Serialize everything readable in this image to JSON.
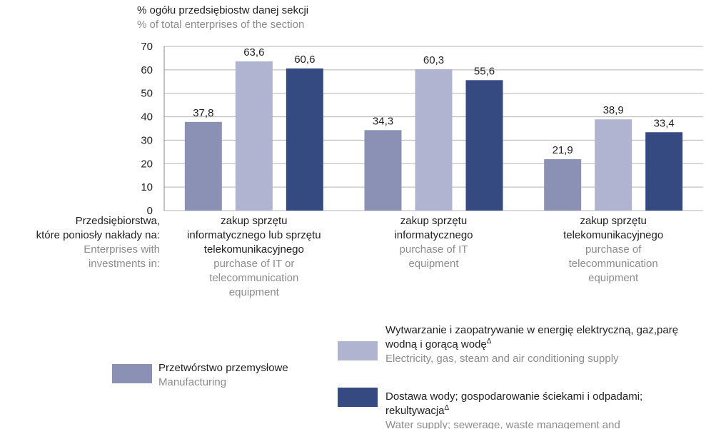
{
  "chart_data": {
    "type": "bar",
    "y_title": "% ogółu przedsiębiostw danej sekcji",
    "y_title_en": "% of total enterprises of the section",
    "row_label": [
      "Przedsiębiorstwa,",
      "które poniosły nakłady na:"
    ],
    "row_label_en": [
      "Enterprises with",
      "investments in:"
    ],
    "categories": [
      "zakup sprzętu informatycznego lub sprzętu telekomunikacyjnego",
      "zakup sprzętu informatycznego",
      "zakup sprzętu telekomunikacyjnego"
    ],
    "categories_en": [
      "purchase of IT or telecommunication equipment",
      "purchase of IT equipment",
      "purchase of telecommunication equipment"
    ],
    "series": [
      {
        "name": "Przetwórstwo przemysłowe",
        "name_en": "Manufacturing",
        "color": "#8a91b4",
        "values": [
          37.8,
          34.3,
          21.9
        ],
        "value_labels": [
          "37,8",
          "34,3",
          "21,9"
        ]
      },
      {
        "name": "Wytwarzanie i zaopatrywanie w energię elektryczną, gaz,parę wodną i gorącą wodę",
        "note_mark": "Δ",
        "name_en": "Electricity, gas, steam and air conditioning supply",
        "color": "#b0b4d1",
        "values": [
          63.6,
          60.3,
          38.9
        ],
        "value_labels": [
          "63,6",
          "60,3",
          "38,9"
        ]
      },
      {
        "name": "Dostawa wody; gospodarowanie ściekami i odpadami; rekultywacja",
        "note_mark": "Δ",
        "name_en": "Water supply; sewerage, waste management and remediation activities",
        "color": "#354a80",
        "values": [
          60.6,
          55.6,
          33.4
        ],
        "value_labels": [
          "60,6",
          "55,6",
          "33,4"
        ]
      }
    ],
    "ylim": [
      0,
      70
    ],
    "yticks": [
      0,
      10,
      20,
      30,
      40,
      50,
      60,
      70
    ],
    "grid": true
  }
}
